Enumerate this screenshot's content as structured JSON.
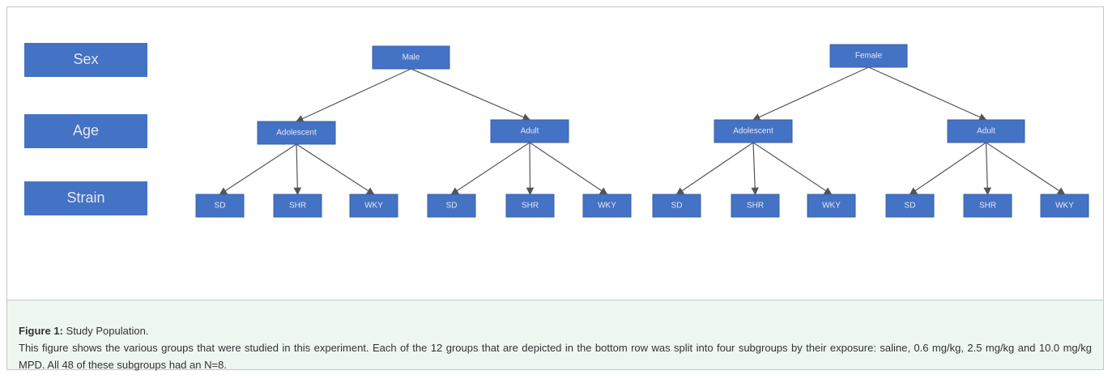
{
  "levels": [
    "Sex",
    "Age",
    "Strain"
  ],
  "nodes": [
    {
      "label": "Male"
    },
    {
      "label": "Female"
    },
    {
      "label": "Adolescent"
    },
    {
      "label": "Adult"
    },
    {
      "label": "Adolescent"
    },
    {
      "label": "Adult"
    },
    {
      "label": "SD"
    },
    {
      "label": "SHR"
    },
    {
      "label": "WKY"
    },
    {
      "label": "SD"
    },
    {
      "label": "SHR"
    },
    {
      "label": "WKY"
    },
    {
      "label": "SD"
    },
    {
      "label": "SHR"
    },
    {
      "label": "WKY"
    },
    {
      "label": "SD"
    },
    {
      "label": "SHR"
    },
    {
      "label": "WKY"
    }
  ],
  "caption": {
    "label": "Figure 1:",
    "title": " Study Population.",
    "text": "This figure shows the various groups that were studied in this experiment. Each of the 12 groups that are depicted in the bottom row was split into four subgroups by their exposure: saline, 0.6 mg/kg, 2.5 mg/kg and 10.0 mg/kg MPD. All 48 of these subgroups had an N=8."
  }
}
